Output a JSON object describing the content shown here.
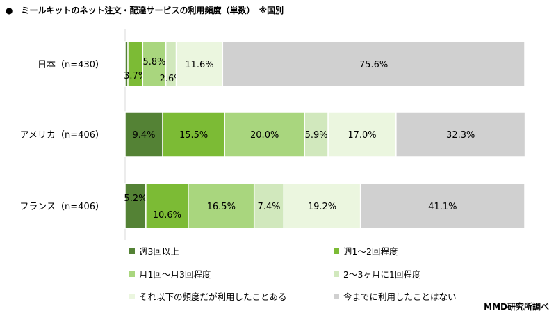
{
  "title": "●　ミールキットのネット注文・配達サービスの利用頻度（単数）　※国別",
  "source": "MMD研究所調べ",
  "chart_data": {
    "type": "bar",
    "orientation": "horizontal",
    "stacked": "100%",
    "categories": [
      "日本（n=430）",
      "アメリカ（n=406）",
      "フランス（n=406）"
    ],
    "series": [
      {
        "name": "週3回以上",
        "color": "#548235",
        "values": [
          0.7,
          9.4,
          5.2
        ],
        "labels": [
          "",
          "9.4%",
          "5.2%"
        ]
      },
      {
        "name": "週1～2回程度",
        "color": "#7cbb35",
        "values": [
          3.7,
          15.5,
          10.6
        ],
        "labels": [
          "3.7%",
          "15.5%",
          "10.6%"
        ]
      },
      {
        "name": "月1回～月3回程度",
        "color": "#a9d67e",
        "values": [
          5.8,
          20.0,
          16.5
        ],
        "labels": [
          "5.8%",
          "20.0%",
          "16.5%"
        ]
      },
      {
        "name": "2～3ヶ月に1回程度",
        "color": "#d1e8bd",
        "values": [
          2.6,
          5.9,
          7.4
        ],
        "labels": [
          "2.6%",
          "5.9%",
          "7.4%"
        ]
      },
      {
        "name": "それ以下の頻度だが利用したことある",
        "color": "#ebf6df",
        "values": [
          11.6,
          17.0,
          19.2
        ],
        "labels": [
          "11.6%",
          "17.0%",
          "19.2%"
        ]
      },
      {
        "name": "今までに利用したことはない",
        "color": "#d0d0d0",
        "values": [
          75.6,
          32.3,
          41.1
        ],
        "labels": [
          "75.6%",
          "32.3%",
          "41.1%"
        ]
      }
    ],
    "xlim": [
      0,
      100
    ],
    "grid": false,
    "legend": "bottom"
  }
}
